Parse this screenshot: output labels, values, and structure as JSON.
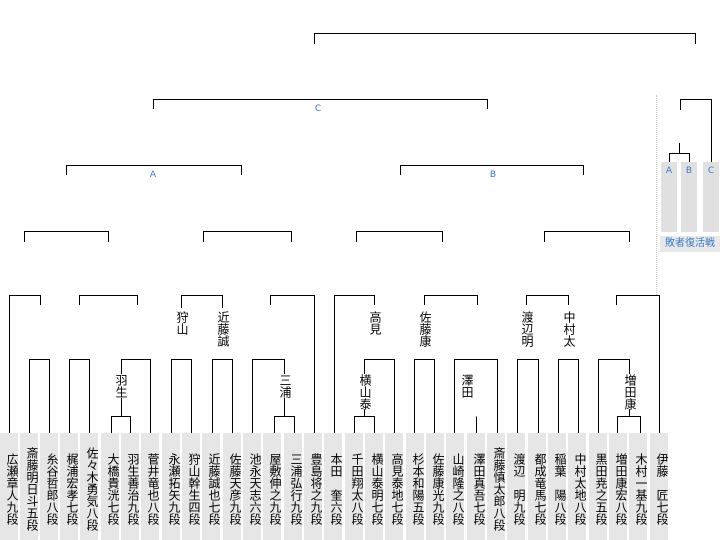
{
  "players": [
    "広瀬章人九段",
    "斎藤明日斗五段",
    "糸谷哲郎八段",
    "梶浦宏孝七段",
    "佐々木勇気八段",
    "大橋貴洸七段",
    "羽生善治九段",
    "菅井竜也八段",
    "永瀬拓矢九段",
    "狩山幹生四段",
    "近藤誠也七段",
    "佐藤天彦九段",
    "池永天志六段",
    "屋敷伸之九段",
    "三浦弘行九段",
    "豊島将之九段",
    "本田　奎六段",
    "千田翔太八段",
    "横山泰明七段",
    "高見泰地七段",
    "杉本和陽五段",
    "佐藤康光九段",
    "山崎隆之八段",
    "澤田真吾七段",
    "斎藤慎太郎八段",
    "渡辺　明九段",
    "都成竜馬七段",
    "稲葉　陽八段",
    "中村太地八段",
    "黒田尭之五段",
    "増田康宏八段",
    "木村一基九段",
    "伊藤　匠七段"
  ],
  "winners": {
    "habu": "羽生",
    "kariyama": "狩山",
    "kondo": "近藤誠",
    "miura": "三浦",
    "yokoyama": "横山泰",
    "takami": "高見",
    "sato": "佐藤康",
    "sawada": "澤田",
    "watanabe": "渡辺明",
    "nakamura": "中村太",
    "masuda": "増田康"
  },
  "blocks": {
    "a": "A",
    "b": "B",
    "c": "C"
  },
  "revival": {
    "slots": [
      "A",
      "B",
      "C"
    ],
    "caption": "敗者復活戦"
  },
  "colors": {
    "line": "#000000",
    "label": "#3a78c9",
    "cell": "#e6e6e6"
  }
}
